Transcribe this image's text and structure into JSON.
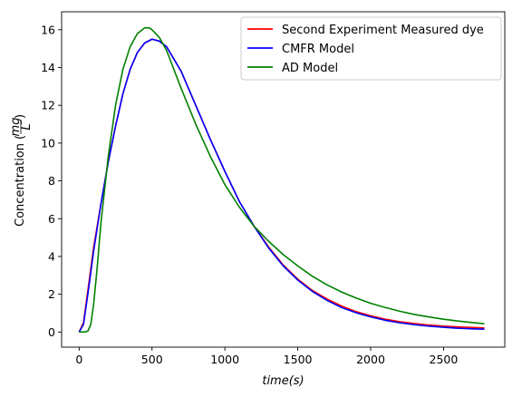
{
  "chart_data": {
    "type": "line",
    "title": "",
    "xlabel": "time(s)",
    "ylabel": "Concentration (mg/L)",
    "ylabel_text": "Concentration",
    "ylabel_unit_num": "mg",
    "ylabel_unit_den": "L",
    "xlim": [
      -120,
      2920
    ],
    "ylim": [
      -0.8,
      16.95
    ],
    "xticks": [
      0,
      500,
      1000,
      1500,
      2000,
      2500
    ],
    "yticks": [
      0,
      2,
      4,
      6,
      8,
      10,
      12,
      14,
      16
    ],
    "legend_position": "top-right",
    "grid": false,
    "series": [
      {
        "name": "Second Experiment Measured dye",
        "color": "#ff0000",
        "x": [
          0,
          30,
          60,
          100,
          150,
          200,
          250,
          300,
          350,
          400,
          450,
          500,
          550,
          600,
          700,
          800,
          900,
          1000,
          1100,
          1200,
          1300,
          1400,
          1500,
          1600,
          1700,
          1800,
          1900,
          2000,
          2100,
          2200,
          2300,
          2400,
          2500,
          2600,
          2700,
          2780
        ],
        "y": [
          0,
          0.5,
          2.2,
          4.5,
          6.8,
          9.0,
          10.9,
          12.6,
          13.9,
          14.8,
          15.3,
          15.5,
          15.4,
          15.1,
          13.8,
          12.0,
          10.2,
          8.5,
          6.9,
          5.6,
          4.5,
          3.55,
          2.8,
          2.2,
          1.75,
          1.38,
          1.08,
          0.86,
          0.68,
          0.55,
          0.45,
          0.37,
          0.31,
          0.27,
          0.24,
          0.22
        ]
      },
      {
        "name": "CMFR Model",
        "color": "#0000ff",
        "x": [
          0,
          30,
          60,
          100,
          150,
          200,
          250,
          300,
          350,
          400,
          450,
          500,
          550,
          600,
          700,
          800,
          900,
          1000,
          1100,
          1200,
          1300,
          1400,
          1500,
          1600,
          1700,
          1800,
          1900,
          2000,
          2100,
          2200,
          2300,
          2400,
          2500,
          2600,
          2700,
          2780
        ],
        "y": [
          0,
          0.4,
          2.0,
          4.3,
          6.8,
          9.0,
          10.9,
          12.6,
          13.9,
          14.8,
          15.3,
          15.5,
          15.4,
          15.1,
          13.8,
          12.0,
          10.2,
          8.5,
          6.9,
          5.6,
          4.45,
          3.5,
          2.75,
          2.15,
          1.68,
          1.3,
          1.02,
          0.8,
          0.62,
          0.49,
          0.39,
          0.31,
          0.25,
          0.2,
          0.17,
          0.15
        ]
      },
      {
        "name": "AD Model",
        "color": "#008000",
        "x": [
          0,
          40,
          60,
          80,
          100,
          125,
          150,
          200,
          250,
          300,
          350,
          400,
          450,
          480,
          500,
          550,
          600,
          700,
          800,
          900,
          1000,
          1100,
          1200,
          1300,
          1400,
          1500,
          1600,
          1700,
          1800,
          1900,
          2000,
          2100,
          2200,
          2300,
          2400,
          2500,
          2600,
          2700,
          2780
        ],
        "y": [
          0,
          0.0,
          0.05,
          0.4,
          1.5,
          3.5,
          5.8,
          9.3,
          12.0,
          13.9,
          15.1,
          15.8,
          16.1,
          16.1,
          16.0,
          15.6,
          14.9,
          12.9,
          11.0,
          9.3,
          7.8,
          6.6,
          5.6,
          4.8,
          4.1,
          3.5,
          2.95,
          2.5,
          2.12,
          1.8,
          1.52,
          1.3,
          1.1,
          0.93,
          0.8,
          0.68,
          0.58,
          0.5,
          0.44
        ]
      }
    ]
  }
}
